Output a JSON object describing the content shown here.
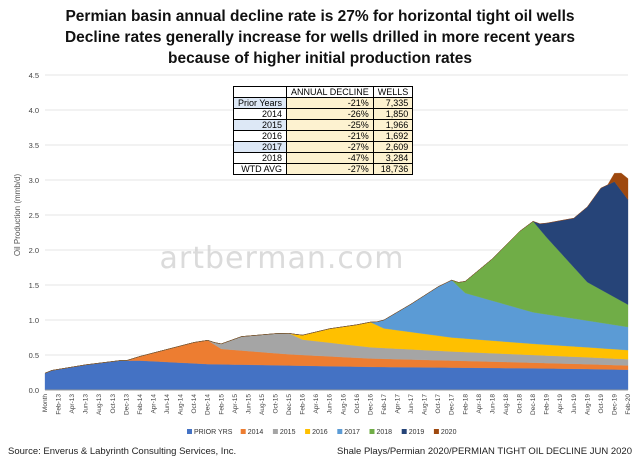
{
  "title_lines": [
    "Permian basin annual decline rate is 27% for horizontal tight oil wells",
    "Decline rates generally increase for wells drilled in more recent years",
    "because of higher initial  production rates"
  ],
  "watermark": "artberman.com",
  "source": "Source: Enverus & Labyrinth Consulting Services, Inc.",
  "credit": "Shale Plays/Permian 2020/PERMIAN TIGHT OIL DECLINE JUN 2020",
  "table": {
    "headers": [
      "",
      "ANNUAL DECLINE",
      "WELLS"
    ],
    "rows": [
      {
        "label": "Prior Years",
        "decline": "-21%",
        "wells": "7,335"
      },
      {
        "label": "2014",
        "decline": "-26%",
        "wells": "1,850"
      },
      {
        "label": "2015",
        "decline": "-25%",
        "wells": "1,966"
      },
      {
        "label": "2016",
        "decline": "-21%",
        "wells": "1,692"
      },
      {
        "label": "2017",
        "decline": "-27%",
        "wells": "2,609"
      },
      {
        "label": "2018",
        "decline": "-47%",
        "wells": "3,284"
      },
      {
        "label": "WTD AVG",
        "decline": "-27%",
        "wells": "18,736"
      }
    ]
  },
  "chart_data": {
    "type": "area",
    "stacked": true,
    "ylabel": "Oil Production  (mmb/d)",
    "ylim": [
      0,
      4.5
    ],
    "yticks": [
      0.0,
      0.5,
      1.0,
      1.5,
      2.0,
      2.5,
      3.0,
      3.5,
      4.0,
      4.5
    ],
    "x_tick_labels": [
      "Month",
      "Feb-13",
      "Apr-13",
      "Jun-13",
      "Aug-13",
      "Oct-13",
      "Dec-13",
      "Feb-14",
      "Apr-14",
      "Jun-14",
      "Aug-14",
      "Oct-14",
      "Dec-14",
      "Feb-15",
      "Apr-15",
      "Jun-15",
      "Aug-15",
      "Oct-15",
      "Dec-15",
      "Feb-16",
      "Apr-16",
      "Jun-16",
      "Aug-16",
      "Oct-16",
      "Dec-16",
      "Feb-17",
      "Apr-17",
      "Jun-17",
      "Aug-17",
      "Oct-17",
      "Dec-17",
      "Feb-18",
      "Apr-18",
      "Jun-18",
      "Aug-18",
      "Oct-18",
      "Dec-18",
      "Feb-19",
      "Apr-19",
      "Jun-19",
      "Aug-19",
      "Oct-19",
      "Dec-19",
      "Feb-20"
    ],
    "legend_position": "bottom",
    "series": [
      {
        "name": "PRIOR YRS",
        "color": "#4472c4",
        "points": [
          [
            0,
            0.24
          ],
          [
            1,
            0.28
          ],
          [
            6,
            0.36
          ],
          [
            11,
            0.42
          ],
          [
            14,
            0.42
          ],
          [
            24,
            0.37
          ],
          [
            36,
            0.35
          ],
          [
            48,
            0.33
          ],
          [
            60,
            0.32
          ],
          [
            72,
            0.31
          ],
          [
            80,
            0.3
          ],
          [
            86,
            0.29
          ]
        ]
      },
      {
        "name": "2014",
        "color": "#ed7d31",
        "points": [
          [
            0,
            0
          ],
          [
            12,
            0
          ],
          [
            13,
            0.03
          ],
          [
            18,
            0.18
          ],
          [
            22,
            0.3
          ],
          [
            24,
            0.34
          ],
          [
            26,
            0.22
          ],
          [
            36,
            0.16
          ],
          [
            48,
            0.12
          ],
          [
            60,
            0.1
          ],
          [
            72,
            0.08
          ],
          [
            86,
            0.06
          ]
        ]
      },
      {
        "name": "2015",
        "color": "#a5a5a5",
        "points": [
          [
            0,
            0
          ],
          [
            24,
            0
          ],
          [
            25,
            0.03
          ],
          [
            29,
            0.2
          ],
          [
            34,
            0.28
          ],
          [
            36,
            0.3
          ],
          [
            38,
            0.22
          ],
          [
            48,
            0.16
          ],
          [
            60,
            0.13
          ],
          [
            72,
            0.11
          ],
          [
            86,
            0.09
          ]
        ]
      },
      {
        "name": "2016",
        "color": "#ffc000",
        "points": [
          [
            0,
            0
          ],
          [
            36,
            0
          ],
          [
            37,
            0.03
          ],
          [
            42,
            0.2
          ],
          [
            46,
            0.3
          ],
          [
            48,
            0.36
          ],
          [
            50,
            0.28
          ],
          [
            60,
            0.2
          ],
          [
            72,
            0.16
          ],
          [
            86,
            0.13
          ]
        ]
      },
      {
        "name": "2017",
        "color": "#5b9bd5",
        "points": [
          [
            0,
            0
          ],
          [
            48,
            0
          ],
          [
            49,
            0.05
          ],
          [
            54,
            0.4
          ],
          [
            58,
            0.7
          ],
          [
            60,
            0.82
          ],
          [
            62,
            0.65
          ],
          [
            72,
            0.45
          ],
          [
            86,
            0.33
          ]
        ]
      },
      {
        "name": "2018",
        "color": "#70ad47",
        "points": [
          [
            0,
            0
          ],
          [
            60,
            0
          ],
          [
            61,
            0.06
          ],
          [
            66,
            0.6
          ],
          [
            70,
            1.1
          ],
          [
            72,
            1.3
          ],
          [
            74,
            1.1
          ],
          [
            80,
            0.55
          ],
          [
            86,
            0.32
          ]
        ]
      },
      {
        "name": "2019",
        "color": "#264478",
        "points": [
          [
            0,
            0
          ],
          [
            72,
            0
          ],
          [
            73,
            0.08
          ],
          [
            78,
            0.7
          ],
          [
            82,
            1.45
          ],
          [
            84,
            1.65
          ],
          [
            86,
            1.5
          ]
        ]
      },
      {
        "name": "2020",
        "color": "#9e480e",
        "points": [
          [
            0,
            0
          ],
          [
            83,
            0
          ],
          [
            84,
            0.12
          ],
          [
            85,
            0.25
          ],
          [
            86,
            0.3
          ]
        ]
      }
    ]
  }
}
